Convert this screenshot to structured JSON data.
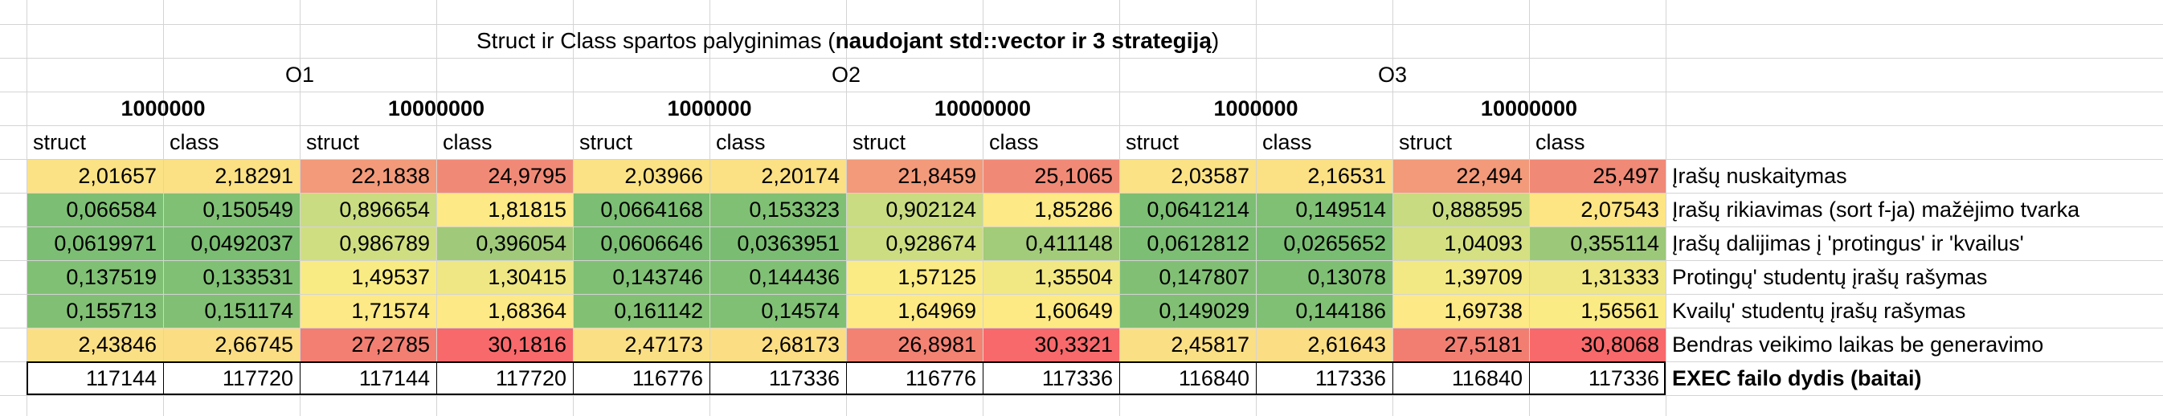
{
  "title_normal": "Struct ir Class spartos palyginimas (",
  "title_bold": "naudojant std::vector ir 3 strategiją",
  "title_end": ")",
  "opt_levels": [
    "O1",
    "O2",
    "O3"
  ],
  "sizes": [
    "1000000",
    "10000000",
    "1000000",
    "10000000",
    "1000000",
    "10000000"
  ],
  "types": [
    "struct",
    "class",
    "struct",
    "class",
    "struct",
    "class",
    "struct",
    "class",
    "struct",
    "class",
    "struct",
    "class"
  ],
  "rows": [
    {
      "label": "Įrašų nuskaitymas",
      "values": [
        "2,01657",
        "2,18291",
        "22,1838",
        "24,9795",
        "2,03966",
        "2,20174",
        "21,8459",
        "25,1065",
        "2,03587",
        "2,16531",
        "22,494",
        "25,497"
      ],
      "colors": [
        "#fbe285",
        "#fbe084",
        "#f29a7a",
        "#f08a77",
        "#fbe285",
        "#fbe084",
        "#f29a7a",
        "#f08a77",
        "#fbe285",
        "#fbe084",
        "#f29a7a",
        "#f08976"
      ]
    },
    {
      "label": "Įrašų rikiavimas (sort f-ja) mažėjimo tvarka",
      "values": [
        "0,066584",
        "0,150549",
        "0,896654",
        "1,81815",
        "0,0664168",
        "0,153323",
        "0,902124",
        "1,85286",
        "0,0641214",
        "0,149514",
        "0,888595",
        "2,07543"
      ],
      "colors": [
        "#7cbe73",
        "#80c074",
        "#c9dc81",
        "#fde985",
        "#7cbe73",
        "#80c074",
        "#c9dc81",
        "#fde985",
        "#7cbe73",
        "#80c074",
        "#c8db81",
        "#fde584"
      ]
    },
    {
      "label": "Įrašų dalijimas į 'protingus' ir 'kvailus'",
      "values": [
        "0,0619971",
        "0,0492037",
        "0,986789",
        "0,396054",
        "0,0606646",
        "0,0363951",
        "0,928674",
        "0,411148",
        "0,0612812",
        "0,0265652",
        "1,04093",
        "0,355114"
      ],
      "colors": [
        "#7cbe73",
        "#7bbd72",
        "#d0de82",
        "#a0ca7a",
        "#7cbe73",
        "#7abd72",
        "#ccdd81",
        "#a2cb7a",
        "#7cbe73",
        "#79bd72",
        "#d4e082",
        "#9cc979"
      ]
    },
    {
      "label": "Protingų' studentų įrašų rašymas",
      "values": [
        "0,137519",
        "0,133531",
        "1,49537",
        "1,30415",
        "0,143746",
        "0,144436",
        "1,57125",
        "1,35504",
        "0,147807",
        "0,13078",
        "1,39709",
        "1,31333"
      ],
      "colors": [
        "#80c074",
        "#80c074",
        "#f9eb84",
        "#eee784",
        "#80c074",
        "#80c074",
        "#fbeb84",
        "#f1e884",
        "#81c074",
        "#7fbf74",
        "#f3e984",
        "#efe784"
      ]
    },
    {
      "label": "Kvailų' studentų įrašų rašymas",
      "values": [
        "0,155713",
        "0,151174",
        "1,71574",
        "1,68364",
        "0,161142",
        "0,14574",
        "1,64969",
        "1,60649",
        "0,149029",
        "0,144186",
        "1,69738",
        "1,56561"
      ],
      "colors": [
        "#81c074",
        "#81c074",
        "#fde985",
        "#fde985",
        "#82c074",
        "#80c074",
        "#fdea85",
        "#fdea85",
        "#81c074",
        "#80c074",
        "#fde985",
        "#fbeb84"
      ]
    },
    {
      "label": "Bendras veikimo laikas be generavimo",
      "values": [
        "2,43846",
        "2,66745",
        "27,2785",
        "30,1816",
        "2,47173",
        "2,68173",
        "26,8981",
        "30,3321",
        "2,45817",
        "2,61643",
        "27,5181",
        "30,8068"
      ],
      "colors": [
        "#fbdf84",
        "#fbdd83",
        "#f27f72",
        "#f8696b",
        "#fbdf84",
        "#fbdd83",
        "#f38273",
        "#f8696b",
        "#fbdf84",
        "#fbdd83",
        "#f27e72",
        "#f8696b"
      ]
    }
  ],
  "exec_label": "EXEC failo dydis (baitai)",
  "exec_values": [
    "117144",
    "117720",
    "117144",
    "117720",
    "116776",
    "117336",
    "116776",
    "117336",
    "116840",
    "117336",
    "116840",
    "117336"
  ]
}
